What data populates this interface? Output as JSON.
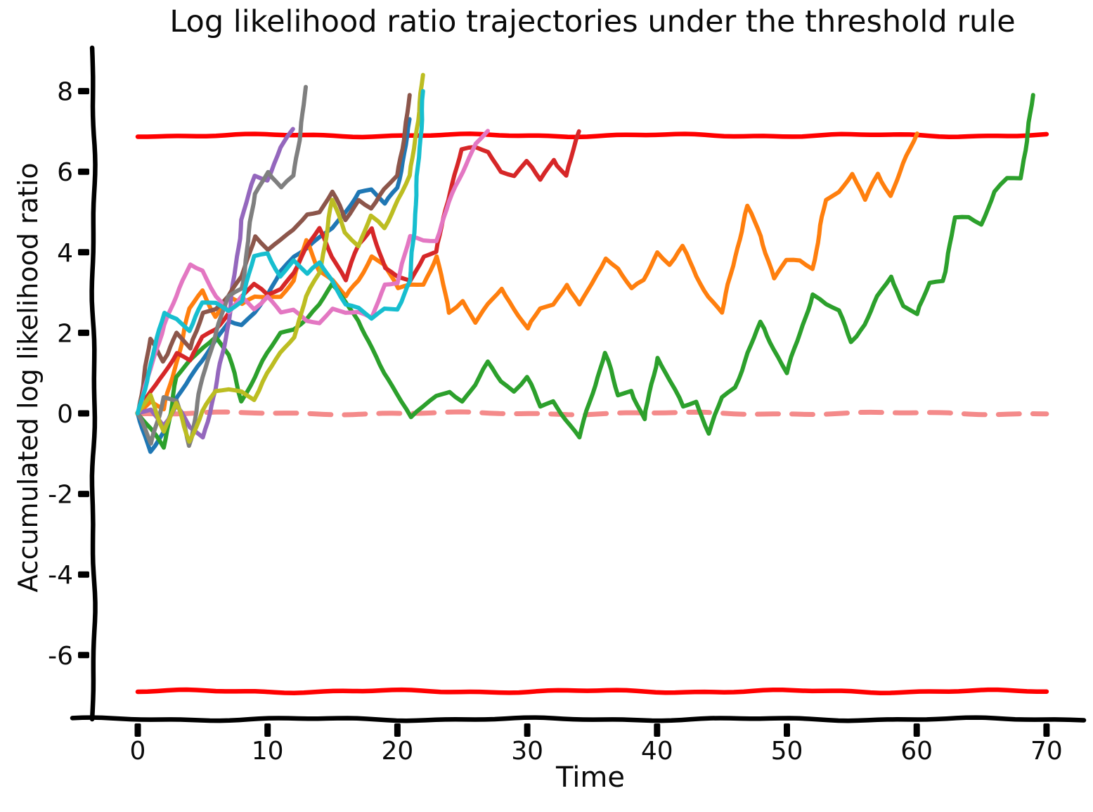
{
  "figure": {
    "background": "#ffffff",
    "axis_color": "#000000",
    "style": "xkcd-sketch"
  },
  "chart_data": {
    "type": "line",
    "title": "Log likelihood ratio trajectories under the threshold rule",
    "xlabel": "Time",
    "ylabel": "Accumulated log likelihood ratio",
    "x_ticks": [
      0,
      10,
      20,
      30,
      40,
      50,
      60,
      70
    ],
    "y_ticks": [
      8,
      6,
      4,
      2,
      0,
      -2,
      -4,
      -6
    ],
    "xlim": [
      -3.5,
      72.5
    ],
    "ylim": [
      -7.6,
      8.6
    ],
    "grid": false,
    "legend": "none",
    "x_step": 1,
    "thresholds": {
      "upper": {
        "value": 6.9,
        "color": "#ff0000",
        "style": "solid"
      },
      "lower": {
        "value": -6.9,
        "color": "#ff0000",
        "style": "solid"
      },
      "zero_line": {
        "value": 0,
        "color": "#f48a8a",
        "style": "dashed"
      }
    },
    "series": [
      {
        "name": "trajectory-blue",
        "color": "#1f77b4",
        "crossing_time": 21,
        "values": [
          0,
          -0.95,
          -0.5,
          0.4,
          0.9,
          1.3,
          1.8,
          2.3,
          2.2,
          2.5,
          2.9,
          3.55,
          3.9,
          4.1,
          4.35,
          4.6,
          5.0,
          5.5,
          5.55,
          5.2,
          5.6,
          7.3
        ]
      },
      {
        "name": "trajectory-orange",
        "color": "#ff7f0e",
        "crossing_time": 60,
        "values": [
          0,
          0.3,
          0.1,
          1.3,
          2.6,
          3.05,
          2.4,
          2.9,
          2.7,
          2.9,
          2.9,
          2.9,
          3.3,
          4.3,
          3.55,
          3.3,
          2.9,
          3.3,
          3.9,
          3.7,
          3.1,
          3.2,
          3.2,
          3.9,
          2.5,
          2.8,
          2.25,
          2.7,
          3.1,
          2.6,
          2.1,
          2.6,
          2.7,
          3.2,
          2.7,
          3.2,
          3.85,
          3.6,
          3.1,
          3.3,
          4.0,
          3.7,
          4.15,
          3.4,
          2.9,
          2.5,
          3.9,
          5.15,
          4.4,
          3.35,
          3.8,
          3.8,
          3.6,
          5.3,
          5.5,
          5.95,
          5.3,
          5.95,
          5.4,
          6.2,
          6.95
        ]
      },
      {
        "name": "trajectory-green",
        "color": "#2ca02c",
        "crossing_time": 69,
        "values": [
          0,
          -0.4,
          -0.85,
          0.9,
          1.3,
          1.65,
          1.9,
          1.45,
          0.3,
          0.9,
          1.5,
          2.0,
          2.1,
          2.35,
          2.7,
          3.2,
          2.8,
          2.3,
          1.6,
          1.0,
          0.5,
          -0.1,
          0.17,
          0.43,
          0.55,
          0.3,
          0.7,
          1.28,
          0.8,
          0.55,
          0.9,
          0.17,
          0.3,
          -0.15,
          -0.6,
          0.5,
          1.5,
          0.45,
          0.57,
          -0.15,
          1.38,
          0.8,
          0.17,
          0.3,
          -0.5,
          0.4,
          0.65,
          1.5,
          2.27,
          1.6,
          1.0,
          2.0,
          2.95,
          2.7,
          2.55,
          1.78,
          2.2,
          2.9,
          3.4,
          2.67,
          2.45,
          3.24,
          3.3,
          4.86,
          4.88,
          4.7,
          5.5,
          5.83,
          5.84,
          7.9
        ]
      },
      {
        "name": "trajectory-red",
        "color": "#d62728",
        "crossing_time": 34,
        "values": [
          0,
          0.55,
          1.0,
          1.5,
          1.3,
          1.9,
          2.1,
          2.5,
          2.9,
          3.2,
          2.95,
          3.1,
          3.5,
          4.1,
          4.6,
          3.9,
          3.3,
          4.2,
          4.6,
          3.6,
          3.4,
          3.3,
          3.9,
          4.0,
          5.5,
          6.55,
          6.6,
          6.5,
          6.0,
          5.9,
          6.25,
          5.8,
          6.3,
          5.9,
          7.0
        ]
      },
      {
        "name": "trajectory-purple",
        "color": "#9467bd",
        "crossing_time": 12,
        "values": [
          0,
          0.1,
          -0.3,
          0.2,
          -0.35,
          -0.6,
          0.6,
          2.3,
          4.8,
          5.9,
          5.8,
          6.6,
          7.05
        ]
      },
      {
        "name": "trajectory-brown",
        "color": "#8c564b",
        "crossing_time": 21,
        "values": [
          0,
          1.85,
          1.3,
          2.0,
          1.6,
          2.5,
          2.6,
          2.9,
          3.4,
          4.4,
          4.05,
          4.3,
          4.55,
          4.95,
          5.0,
          5.5,
          4.8,
          5.3,
          5.1,
          5.55,
          5.9,
          7.9
        ]
      },
      {
        "name": "trajectory-pink",
        "color": "#e377c2",
        "crossing_time": 27,
        "values": [
          0,
          1.1,
          2.2,
          2.9,
          3.7,
          3.55,
          2.9,
          2.5,
          2.9,
          2.6,
          2.9,
          2.5,
          2.56,
          2.3,
          2.26,
          2.6,
          2.5,
          2.5,
          2.36,
          3.2,
          3.25,
          4.4,
          4.3,
          4.3,
          5.25,
          6.0,
          6.7,
          7.0
        ]
      },
      {
        "name": "trajectory-gray",
        "color": "#7f7f7f",
        "crossing_time": 13,
        "values": [
          0,
          -0.75,
          0.4,
          0.3,
          -0.8,
          0.9,
          2.0,
          2.9,
          3.1,
          5.45,
          6.0,
          5.6,
          5.9,
          8.1
        ]
      },
      {
        "name": "trajectory-olive",
        "color": "#bcbd22",
        "crossing_time": 22,
        "values": [
          0,
          0.45,
          -0.45,
          0.25,
          -0.7,
          0.05,
          0.55,
          0.6,
          0.55,
          0.35,
          1.0,
          1.5,
          1.9,
          2.9,
          3.5,
          5.3,
          4.5,
          4.15,
          4.9,
          4.6,
          5.3,
          5.9,
          8.4
        ]
      },
      {
        "name": "trajectory-cyan",
        "color": "#17becf",
        "crossing_time": 22,
        "values": [
          0,
          1.2,
          2.5,
          2.35,
          2.05,
          2.75,
          2.75,
          2.55,
          2.8,
          3.9,
          3.97,
          3.4,
          3.8,
          3.45,
          3.75,
          3.3,
          2.7,
          2.6,
          2.35,
          2.6,
          2.6,
          3.3,
          8.0
        ]
      }
    ]
  }
}
